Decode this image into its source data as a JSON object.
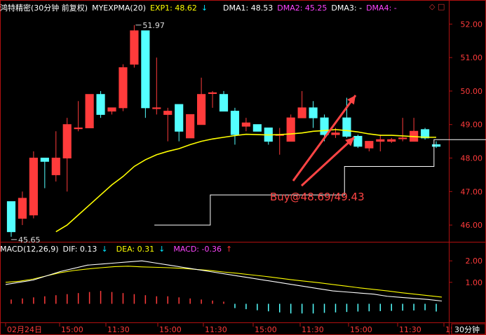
{
  "header": {
    "instrument": "鸿特精密(30分钟 前复权)",
    "indicator": "MYEXPMA(20)",
    "exp1_label": "EXP1: 48.62",
    "exp1_arrow": "↓",
    "dma1_label": "DMA1: 48.53",
    "dma2_label": "DMA2: 45.25",
    "dma3_label": "DMA3: -",
    "dma4_label": "DMA4: -",
    "corner_icons": "◇ □",
    "colors": {
      "exp1": "#ffff00",
      "dma1": "#ffffff",
      "dma2": "#ff44ff",
      "dma3": "#ffffff",
      "dma4": "#ff44ff"
    }
  },
  "macd_header": {
    "name": "MACD(12,26,9)",
    "dif_label": "DIF: 0.13",
    "dif_arrow": "↓",
    "dea_label": "DEA: 0.31",
    "dea_arrow": "↓",
    "macd_label": "MACD: -0.36",
    "macd_arrow": "↑"
  },
  "price_axis": [
    "52.00",
    "51.00",
    "50.00",
    "49.00",
    "48.00",
    "47.00",
    "46.00"
  ],
  "macd_axis": [
    "2.00",
    "1.00"
  ],
  "time_axis": [
    "02月24日",
    "15:00",
    "11:30",
    "15:00",
    "11:30",
    "15:00",
    "11:30",
    "15:00",
    "11:30",
    "15"
  ],
  "period_label": "30分钟",
  "annotations": {
    "high_label": "51.97",
    "low_label": "45.65",
    "buy_label": "Buy@48.69/49.43"
  },
  "chart_data": {
    "type": "candlestick",
    "ylim": [
      45.5,
      52.3
    ],
    "candles": [
      {
        "o": 46.7,
        "h": 46.7,
        "l": 45.65,
        "c": 45.8
      },
      {
        "o": 46.2,
        "h": 47.0,
        "l": 46.0,
        "c": 46.8
      },
      {
        "o": 46.3,
        "h": 48.2,
        "l": 46.2,
        "c": 48.0
      },
      {
        "o": 48.0,
        "h": 48.0,
        "l": 47.1,
        "c": 47.9
      },
      {
        "o": 47.5,
        "h": 48.8,
        "l": 47.3,
        "c": 48.0
      },
      {
        "o": 48.0,
        "h": 49.2,
        "l": 47.0,
        "c": 49.0
      },
      {
        "o": 48.9,
        "h": 49.7,
        "l": 48.8,
        "c": 48.9
      },
      {
        "o": 48.9,
        "h": 49.9,
        "l": 48.9,
        "c": 49.9
      },
      {
        "o": 49.9,
        "h": 50.0,
        "l": 49.2,
        "c": 49.3
      },
      {
        "o": 49.4,
        "h": 49.5,
        "l": 49.3,
        "c": 49.5
      },
      {
        "o": 49.5,
        "h": 50.8,
        "l": 49.4,
        "c": 50.7
      },
      {
        "o": 50.8,
        "h": 51.97,
        "l": 50.7,
        "c": 51.8
      },
      {
        "o": 51.8,
        "h": 51.8,
        "l": 49.2,
        "c": 49.5
      },
      {
        "o": 49.5,
        "h": 51.0,
        "l": 49.3,
        "c": 49.5
      },
      {
        "o": 49.3,
        "h": 49.5,
        "l": 48.5,
        "c": 49.4
      },
      {
        "o": 49.6,
        "h": 49.6,
        "l": 48.5,
        "c": 48.8
      },
      {
        "o": 48.6,
        "h": 49.3,
        "l": 48.6,
        "c": 49.3
      },
      {
        "o": 49.0,
        "h": 50.4,
        "l": 49.0,
        "c": 49.9
      },
      {
        "o": 49.95,
        "h": 50.0,
        "l": 49.5,
        "c": 49.95
      },
      {
        "o": 49.9,
        "h": 50.0,
        "l": 49.4,
        "c": 49.4
      },
      {
        "o": 49.4,
        "h": 49.5,
        "l": 48.4,
        "c": 48.7
      },
      {
        "o": 48.95,
        "h": 49.2,
        "l": 48.8,
        "c": 49.05
      },
      {
        "o": 49.0,
        "h": 49.0,
        "l": 48.8,
        "c": 48.8
      },
      {
        "o": 48.9,
        "h": 48.9,
        "l": 48.4,
        "c": 48.5
      },
      {
        "o": 48.7,
        "h": 48.9,
        "l": 48.1,
        "c": 48.7
      },
      {
        "o": 48.5,
        "h": 49.3,
        "l": 48.5,
        "c": 49.2
      },
      {
        "o": 49.2,
        "h": 50.0,
        "l": 49.2,
        "c": 49.5
      },
      {
        "o": 49.5,
        "h": 49.7,
        "l": 48.9,
        "c": 49.2
      },
      {
        "o": 49.2,
        "h": 49.3,
        "l": 48.5,
        "c": 48.7
      },
      {
        "o": 48.7,
        "h": 48.9,
        "l": 48.6,
        "c": 48.75
      },
      {
        "o": 49.2,
        "h": 49.8,
        "l": 48.6,
        "c": 48.65
      },
      {
        "o": 48.65,
        "h": 48.7,
        "l": 48.3,
        "c": 48.35
      },
      {
        "o": 48.3,
        "h": 48.5,
        "l": 48.2,
        "c": 48.5
      },
      {
        "o": 48.5,
        "h": 48.7,
        "l": 48.2,
        "c": 48.55
      },
      {
        "o": 48.5,
        "h": 48.6,
        "l": 48.45,
        "c": 48.55
      },
      {
        "o": 48.6,
        "h": 49.2,
        "l": 48.5,
        "c": 48.6
      },
      {
        "o": 48.5,
        "h": 49.2,
        "l": 48.5,
        "c": 48.8
      },
      {
        "o": 48.85,
        "h": 48.9,
        "l": 48.55,
        "c": 48.6
      },
      {
        "o": 48.4,
        "h": 48.5,
        "l": 48.3,
        "c": 48.35
      }
    ],
    "exp1_line": [
      45.8,
      46.0,
      46.3,
      46.6,
      46.9,
      47.2,
      47.45,
      47.75,
      47.95,
      48.1,
      48.2,
      48.28,
      48.4,
      48.5,
      48.57,
      48.62,
      48.67,
      48.71,
      48.7,
      48.69,
      48.7,
      48.72,
      48.75,
      48.8,
      48.82,
      48.85,
      48.82,
      48.78,
      48.72,
      48.68,
      48.68,
      48.66,
      48.64,
      48.62,
      48.62
    ],
    "dma1_line": [
      46.0,
      46.0,
      46.0,
      46.0,
      46.0,
      46.9,
      46.9,
      46.9,
      46.9,
      46.9,
      46.9,
      46.9,
      46.9,
      46.9,
      46.9,
      46.9,
      46.9,
      47.75,
      47.75,
      47.75,
      47.75,
      47.75,
      47.75,
      47.75,
      47.75,
      48.55,
      48.55,
      48.55,
      48.55,
      48.55,
      48.55,
      48.55,
      48.53
    ],
    "macd": {
      "ylim": [
        -0.8,
        2.3
      ],
      "dif": [
        0.9,
        1.0,
        1.1,
        1.3,
        1.5,
        1.65,
        1.8,
        1.85,
        1.9,
        1.95,
        2.0,
        1.9,
        1.8,
        1.7,
        1.6,
        1.5,
        1.4,
        1.3,
        1.2,
        1.1,
        1.0,
        0.9,
        0.8,
        0.7,
        0.6,
        0.55,
        0.5,
        0.45,
        0.35,
        0.3,
        0.25,
        0.2,
        0.13
      ],
      "dea": [
        1.0,
        1.05,
        1.15,
        1.3,
        1.45,
        1.55,
        1.62,
        1.68,
        1.73,
        1.75,
        1.72,
        1.7,
        1.68,
        1.65,
        1.6,
        1.55,
        1.48,
        1.42,
        1.35,
        1.28,
        1.2,
        1.12,
        1.05,
        0.98,
        0.9,
        0.82,
        0.74,
        0.67,
        0.6,
        0.52,
        0.45,
        0.38,
        0.31
      ],
      "hist": [
        0.2,
        0.25,
        0.3,
        0.35,
        0.4,
        0.45,
        0.5,
        0.55,
        0.6,
        0.55,
        0.5,
        0.45,
        0.4,
        0.35,
        0.35,
        0.3,
        0.25,
        0.2,
        0.15,
        0.1,
        -0.2,
        -0.25,
        -0.3,
        -0.35,
        -0.4,
        -0.45,
        -0.45,
        -0.45,
        -0.42,
        -0.4,
        -0.38,
        -0.36,
        -0.35,
        -0.34,
        -0.33,
        -0.32,
        -0.31,
        -0.3,
        -0.36
      ]
    }
  }
}
